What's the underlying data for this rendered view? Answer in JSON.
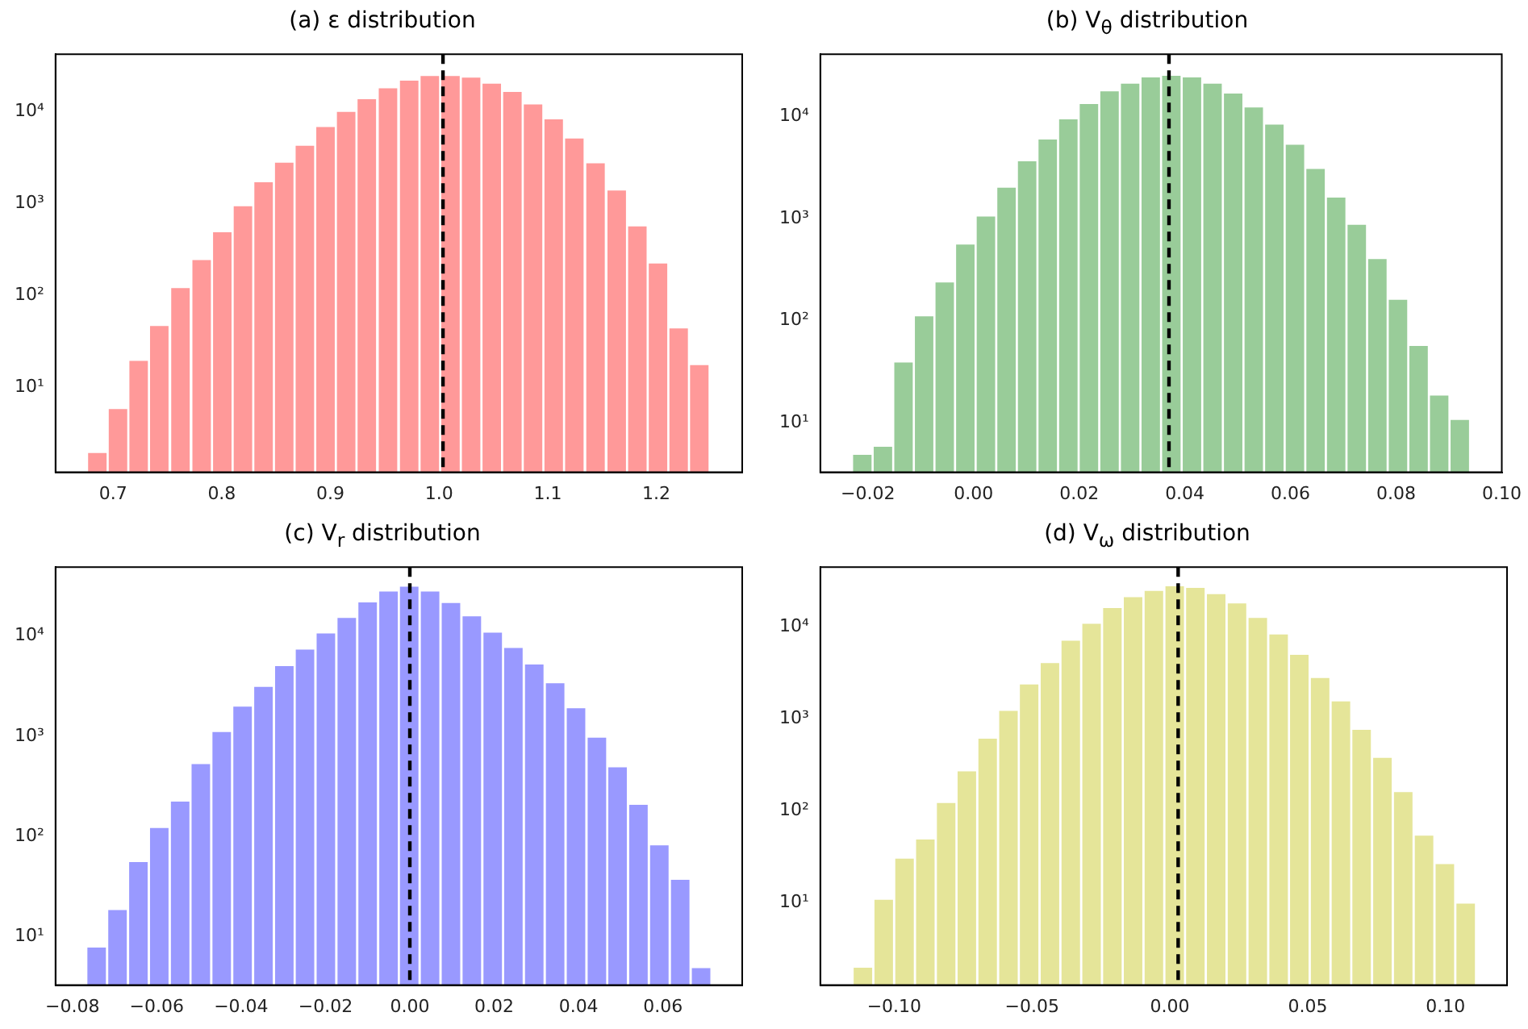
{
  "chart_data": [
    {
      "type": "histogram",
      "title": "(a) ε distribution",
      "log": true,
      "grid": false,
      "color": "#ff9999",
      "bins": [
        0.676,
        0.695,
        0.714,
        0.733,
        0.752,
        0.772,
        0.791,
        0.81,
        0.829,
        0.848,
        0.867,
        0.886,
        0.905,
        0.924,
        0.943,
        0.963,
        0.982,
        1.001,
        1.02,
        1.039,
        1.058,
        1.077,
        1.096,
        1.115,
        1.134,
        1.154,
        1.173,
        1.192,
        1.211,
        1.23,
        1.249
      ],
      "values": [
        2,
        6,
        20,
        48,
        124,
        250,
        500,
        960,
        1750,
        2850,
        4370,
        6960,
        10200,
        14000,
        18400,
        22300,
        25000,
        25000,
        24000,
        20600,
        16800,
        12300,
        8450,
        5240,
        2810,
        1420,
        581,
        229,
        45,
        18
      ],
      "xlim": [
        0.647,
        1.279
      ],
      "xticks": [
        0.7,
        0.8,
        0.9,
        {
          "value": 1.0,
          "label": "1.0"
        },
        1.1,
        1.2
      ],
      "ylim": [
        1.2,
        42000
      ],
      "yticks": [
        {
          "value": 10,
          "label": "10¹"
        },
        {
          "value": 100,
          "label": "10²"
        },
        {
          "value": 1000,
          "label": "10³"
        },
        {
          "value": 10000,
          "label": "10⁴"
        }
      ],
      "ref_lines": [
        {
          "axis": "x",
          "value": 1.0036,
          "color": "#000000",
          "line_style": "dashed"
        }
      ]
    },
    {
      "type": "histogram",
      "title": "(b) V$_{θ}$ distribution",
      "log": true,
      "grid": false,
      "color": "#99cc99",
      "bins": [
        -0.023,
        -0.0191,
        -0.0152,
        -0.0113,
        -0.0074,
        -0.0035,
        0.0004,
        0.0043,
        0.0082,
        0.0121,
        0.016,
        0.0199,
        0.0238,
        0.0277,
        0.0316,
        0.0355,
        0.0394,
        0.0433,
        0.0472,
        0.0511,
        0.055,
        0.0589,
        0.0628,
        0.0667,
        0.0706,
        0.0745,
        0.0784,
        0.0823,
        0.0862,
        0.0901,
        0.094
      ],
      "values": [
        5,
        6,
        40,
        113,
        243,
        570,
        1070,
        2050,
        3720,
        6050,
        9550,
        13500,
        17900,
        21300,
        24500,
        25400,
        24500,
        21300,
        17100,
        12500,
        8490,
        5390,
        3120,
        1640,
        887,
        411,
        164,
        58,
        19,
        11
      ],
      "xlim": [
        -0.029,
        0.1
      ],
      "xticks": [
        {
          "value": -0.02,
          "label": "−0.02"
        },
        {
          "value": 0,
          "label": "0.00"
        },
        {
          "value": 0.02,
          "label": "0.02"
        },
        {
          "value": 0.04,
          "label": "0.04"
        },
        {
          "value": 0.06,
          "label": "0.06"
        },
        {
          "value": 0.08,
          "label": "0.08"
        },
        {
          "value": 0.1,
          "label": "0.10"
        }
      ],
      "ylim": [
        3.3,
        40400
      ],
      "yticks": [
        {
          "value": 10,
          "label": "10¹"
        },
        {
          "value": 100,
          "label": "10²"
        },
        {
          "value": 1000,
          "label": "10³"
        },
        {
          "value": 10000,
          "label": "10⁴"
        }
      ],
      "ref_lines": [
        {
          "axis": "x",
          "value": 0.037,
          "color": "#000000",
          "line_style": "dashed"
        }
      ]
    },
    {
      "type": "histogram",
      "title": "(c) V$_{r}$ distribution",
      "log": true,
      "grid": false,
      "color": "#9999ff",
      "bins": [
        -0.0767,
        -0.0718,
        -0.0668,
        -0.0619,
        -0.0569,
        -0.052,
        -0.0471,
        -0.0421,
        -0.0372,
        -0.0322,
        -0.0273,
        -0.0224,
        -0.0174,
        -0.0125,
        -0.0075,
        -0.0026,
        0.0023,
        0.0073,
        0.0122,
        0.0172,
        0.0221,
        0.027,
        0.032,
        0.0369,
        0.0419,
        0.0468,
        0.0517,
        0.0567,
        0.0616,
        0.0666,
        0.0715
      ],
      "values": [
        8,
        19,
        57,
        125,
        229,
        541,
        1130,
        2030,
        3190,
        5130,
        7510,
        10900,
        15500,
        22200,
        28500,
        31800,
        28500,
        21900,
        16100,
        11100,
        7790,
        5320,
        3470,
        1950,
        991,
        502,
        213,
        84,
        38,
        5
      ],
      "xlim": [
        -0.084,
        0.0788
      ],
      "xticks": [
        {
          "value": -0.08,
          "label": "−0.08"
        },
        {
          "value": -0.06,
          "label": "−0.06"
        },
        {
          "value": -0.04,
          "label": "−0.04"
        },
        {
          "value": -0.02,
          "label": "−0.02"
        },
        {
          "value": 0,
          "label": "0.00"
        },
        {
          "value": 0.02,
          "label": "0.02"
        },
        {
          "value": 0.04,
          "label": "0.04"
        },
        {
          "value": 0.06,
          "label": "0.06"
        }
      ],
      "ylim": [
        3.3,
        48700
      ],
      "yticks": [
        {
          "value": 10,
          "label": "10¹"
        },
        {
          "value": 100,
          "label": "10²"
        },
        {
          "value": 1000,
          "label": "10³"
        },
        {
          "value": 10000,
          "label": "10⁴"
        }
      ],
      "ref_lines": [
        {
          "axis": "x",
          "value": 0,
          "color": "#000000",
          "line_style": "dashed"
        }
      ]
    },
    {
      "type": "histogram",
      "title": "(d) V$_{ω}$ distribution",
      "log": true,
      "grid": false,
      "color": "#e5e599",
      "bins": [
        -0.1151,
        -0.1076,
        -0.1,
        -0.0925,
        -0.0849,
        -0.0774,
        -0.0699,
        -0.0623,
        -0.0548,
        -0.0473,
        -0.0397,
        -0.0322,
        -0.0246,
        -0.0171,
        -0.0096,
        -0.002,
        0.0055,
        0.013,
        0.0206,
        0.0281,
        0.0357,
        0.0432,
        0.0507,
        0.0583,
        0.0658,
        0.0733,
        0.0809,
        0.0884,
        0.096,
        0.1035,
        0.1111
      ],
      "values": [
        2,
        11,
        31,
        50,
        125,
        276,
        627,
        1260,
        2450,
        4180,
        7310,
        11200,
        16600,
        21800,
        25500,
        28700,
        27600,
        23600,
        18700,
        13000,
        8550,
        5150,
        2870,
        1600,
        782,
        387,
        164,
        55,
        27,
        10
      ],
      "xlim": [
        -0.1268,
        0.1223
      ],
      "xticks": [
        {
          "value": -0.1,
          "label": "−0.10"
        },
        {
          "value": -0.05,
          "label": "−0.05"
        },
        {
          "value": 0,
          "label": "0.00"
        },
        {
          "value": 0.05,
          "label": "0.05"
        },
        {
          "value": 0.1,
          "label": "0.10"
        }
      ],
      "ylim": [
        1.26,
        45200
      ],
      "yticks": [
        {
          "value": 10,
          "label": "10¹"
        },
        {
          "value": 100,
          "label": "10²"
        },
        {
          "value": 1000,
          "label": "10³"
        },
        {
          "value": 10000,
          "label": "10⁴"
        }
      ],
      "ref_lines": [
        {
          "axis": "x",
          "value": 0.003,
          "color": "#000000",
          "line_style": "dashed"
        }
      ]
    }
  ]
}
